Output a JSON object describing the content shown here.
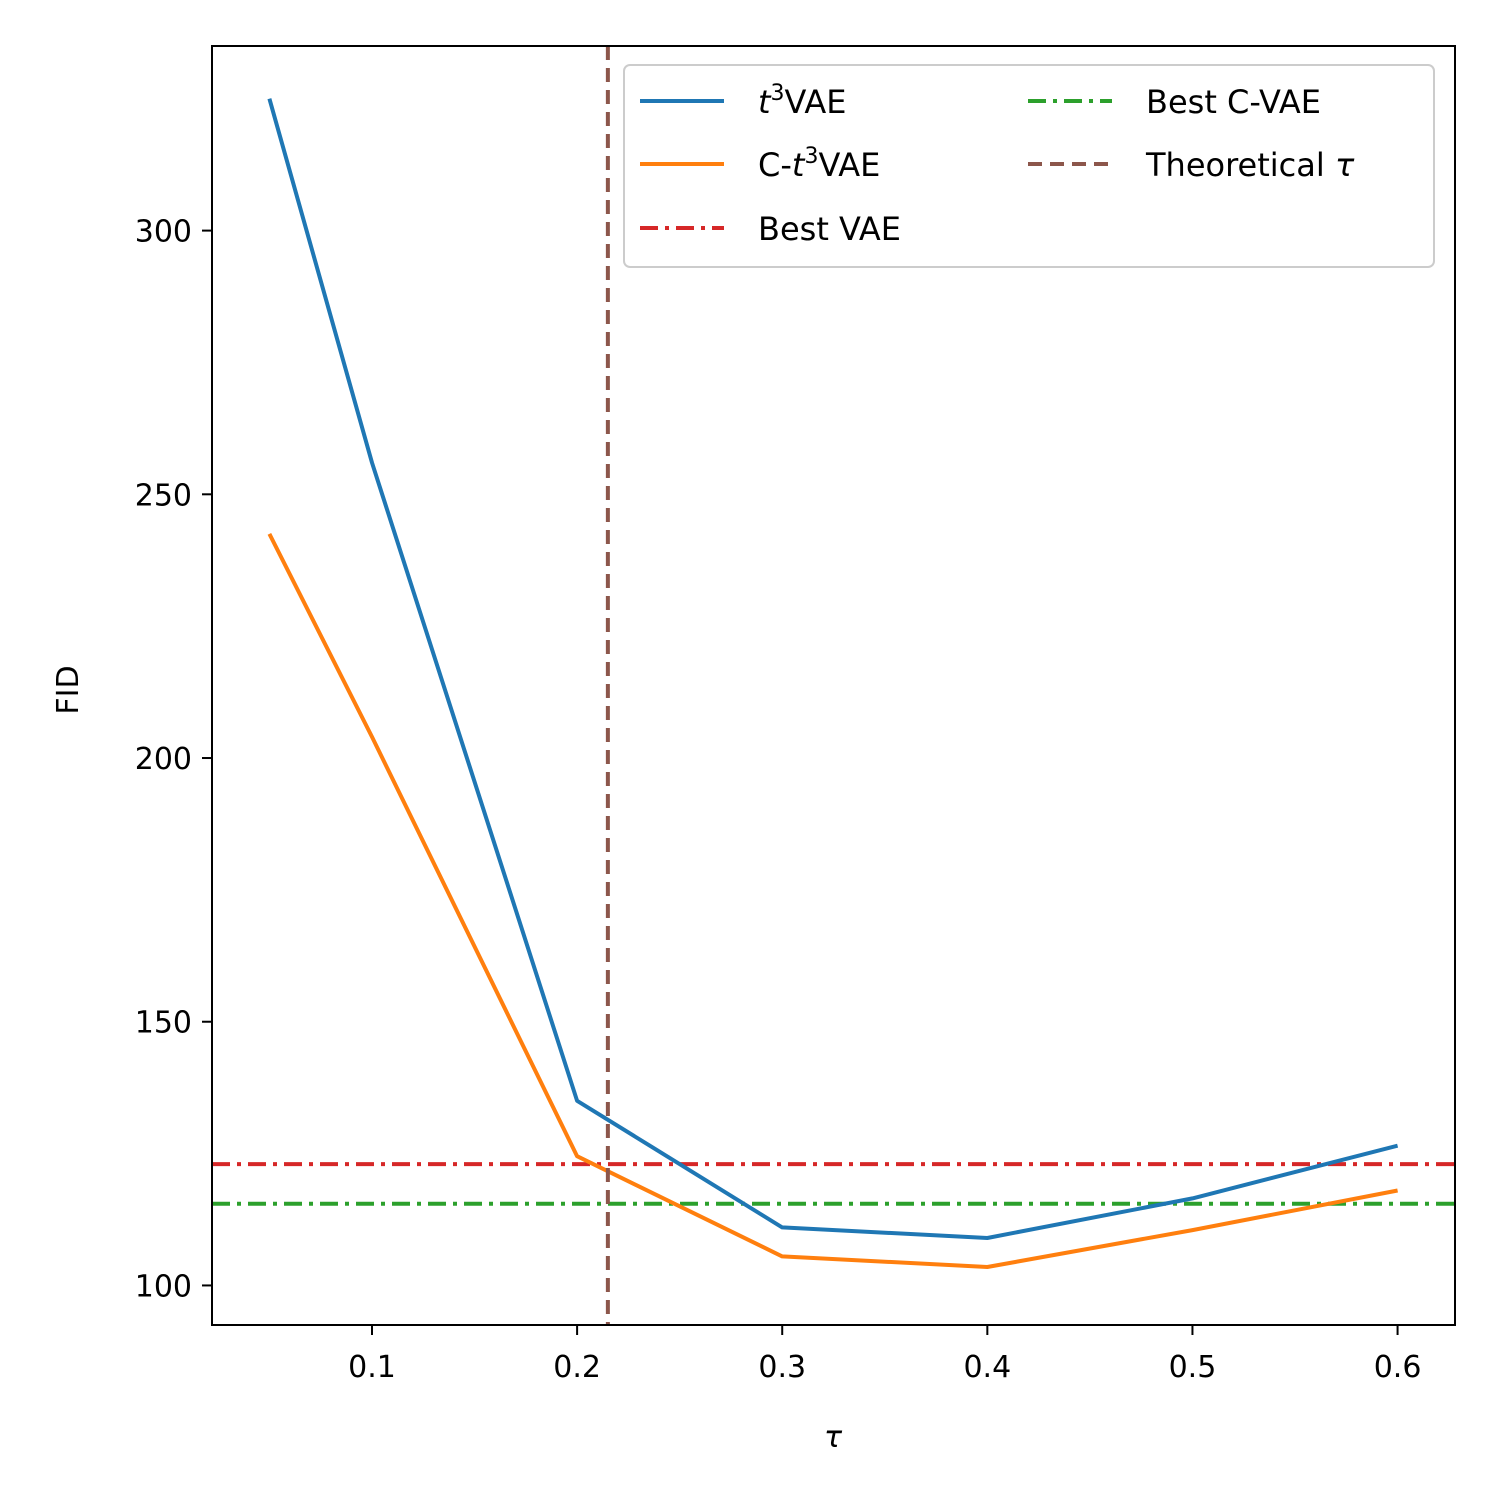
{
  "chart_data": {
    "type": "line",
    "xlabel": "τ",
    "ylabel": "FID",
    "xlim": [
      0.022,
      0.628
    ],
    "ylim": [
      92.5,
      335
    ],
    "xticks": [
      0.1,
      0.2,
      0.3,
      0.4,
      0.5,
      0.6
    ],
    "xtick_labels": [
      "0.1",
      "0.2",
      "0.3",
      "0.4",
      "0.5",
      "0.6"
    ],
    "yticks": [
      100,
      150,
      200,
      250,
      300
    ],
    "ytick_labels": [
      "100",
      "150",
      "200",
      "250",
      "300"
    ],
    "grid": false,
    "legend_position": "top-right",
    "legend_columns": 2,
    "series": [
      {
        "name": "t3VAE",
        "display_prefix": "",
        "display_italic": "t",
        "display_sup": "3",
        "display_suffix": "VAE",
        "color": "#1f77b4",
        "style": "solid",
        "x": [
          0.05,
          0.1,
          0.2,
          0.3,
          0.4,
          0.5,
          0.6
        ],
        "y": [
          325,
          256,
          135,
          111,
          109,
          116.5,
          126.5
        ]
      },
      {
        "name": "C-t3VAE",
        "display_prefix": "C-",
        "display_italic": "t",
        "display_sup": "3",
        "display_suffix": "VAE",
        "color": "#ff7f0e",
        "style": "solid",
        "x": [
          0.05,
          0.1,
          0.2,
          0.3,
          0.4,
          0.5,
          0.6
        ],
        "y": [
          242.5,
          204,
          124.5,
          105.5,
          103.5,
          110.5,
          118
        ]
      }
    ],
    "hlines": [
      {
        "name": "Best VAE",
        "y": 123,
        "color": "#d62728",
        "style": "dashdot"
      },
      {
        "name": "Best C-VAE",
        "y": 115.5,
        "color": "#2ca02c",
        "style": "dashdot"
      }
    ],
    "vlines": [
      {
        "name": "Theoretical τ",
        "x": 0.215,
        "color": "#8c564b",
        "style": "dashed"
      }
    ]
  }
}
